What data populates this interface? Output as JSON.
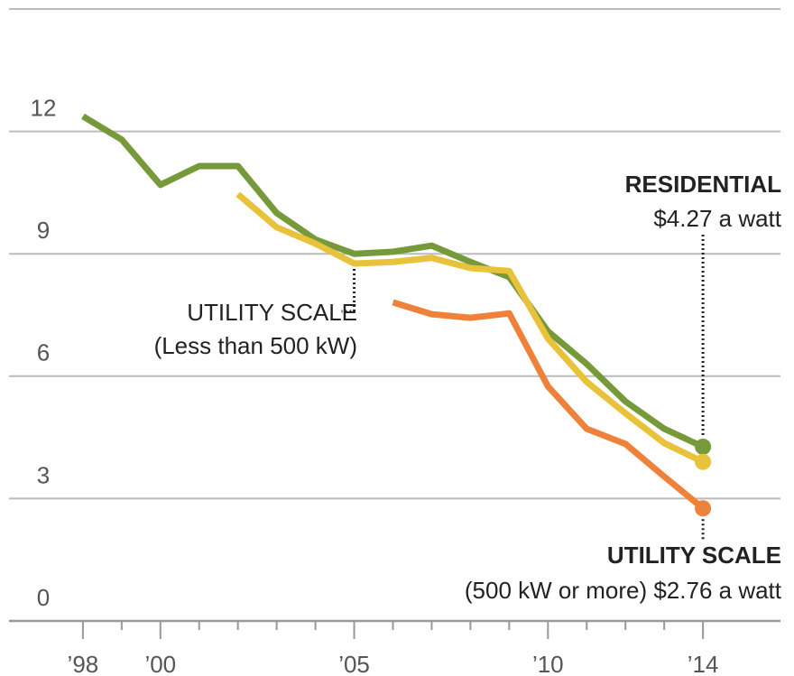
{
  "chart_data": {
    "type": "line",
    "x": [
      1998,
      1999,
      2000,
      2001,
      2002,
      2003,
      2004,
      2005,
      2006,
      2007,
      2008,
      2009,
      2010,
      2011,
      2012,
      2013,
      2014
    ],
    "series": [
      {
        "name": "RESIDENTIAL",
        "note": "$4.27 a watt",
        "color": "#76993a",
        "values": [
          12.37,
          11.8,
          10.69,
          11.15,
          11.15,
          10.0,
          9.35,
          9.0,
          9.05,
          9.2,
          8.8,
          8.43,
          7.1,
          6.3,
          5.38,
          4.71,
          4.27
        ]
      },
      {
        "name": "UTILITY SCALE",
        "note": "(Less than 500 kW)",
        "color": "#e8c23a",
        "values": [
          null,
          null,
          null,
          null,
          10.46,
          9.65,
          9.25,
          8.76,
          8.8,
          8.9,
          8.65,
          8.58,
          6.92,
          5.86,
          5.09,
          4.36,
          3.9
        ]
      },
      {
        "name": "UTILITY SCALE",
        "note": "(500 kW or more) $2.76 a watt",
        "color": "#ee823a",
        "values": [
          null,
          null,
          null,
          null,
          null,
          null,
          null,
          null,
          7.81,
          7.52,
          7.43,
          7.54,
          5.75,
          4.71,
          4.34,
          3.54,
          2.76
        ]
      }
    ],
    "xlim": [
      1996,
      2016
    ],
    "xticks": [
      {
        "value": 1998,
        "label": "’98"
      },
      {
        "value": 2000,
        "label": "’00"
      },
      {
        "value": 2005,
        "label": "’05"
      },
      {
        "value": 2010,
        "label": "’10"
      },
      {
        "value": 2014,
        "label": "’14"
      }
    ],
    "xminorticks": [
      1999,
      2001,
      2002,
      2003,
      2004,
      2006,
      2007,
      2008,
      2009,
      2011,
      2012,
      2013
    ],
    "ylim": [
      0,
      15
    ],
    "yticks": [
      0,
      3,
      6,
      9,
      12,
      15
    ],
    "grid": true
  }
}
